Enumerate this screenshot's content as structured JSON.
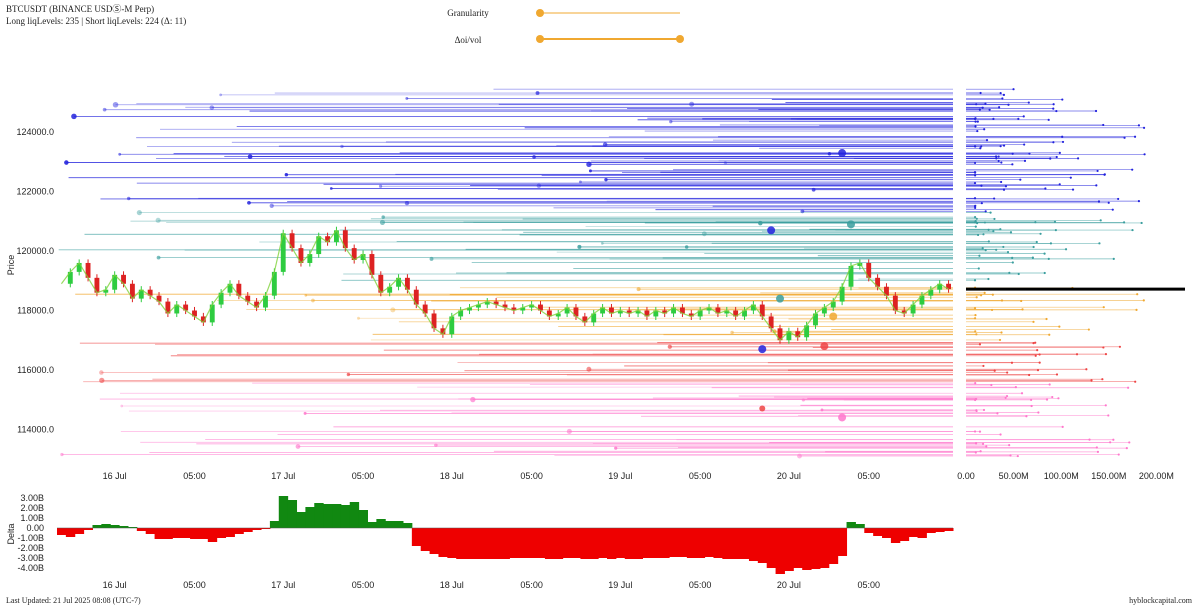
{
  "header": {
    "title": "BTCUSDT (BINANCE USDⓈ-M Perp)",
    "subtitle": "Long liqLevels: 235 | Short liqLevels: 224 (Δ: 11)"
  },
  "controls": {
    "granularity_label": "Granularity",
    "granularity_value": 0.0,
    "oi_vol_label": "Δoi/vol",
    "oi_vol_range": [
      0.0,
      1.0
    ]
  },
  "footer": {
    "last_updated": "Last Updated: 21 Jul 2025 08:08 (UTC-7)",
    "brand": "hyblockcapital.com"
  },
  "colors": {
    "short_liq": "#2222dd",
    "short_liq_mid": "#3a9e9e",
    "long_liq_mid": "#f0a830",
    "long_liq": "#ee4444",
    "long_liq_far": "#ff77cc",
    "candle_up": "#2ecc40",
    "candle_down": "#dd2222",
    "delta_pos": "#118811",
    "delta_neg": "#ee0000",
    "current_price": "#000000"
  },
  "chart_data": [
    {
      "type": "line",
      "name": "main",
      "ylabel": "Price",
      "xlabel": "",
      "ylim": [
        112800,
        126600
      ],
      "yticks": [
        114000,
        116000,
        118000,
        120000,
        122000,
        124000
      ],
      "ytick_labels": [
        "114000.0",
        "116000.0",
        "118000.0",
        "120000.0",
        "122000.0",
        "124000.0"
      ],
      "xticks": [
        0,
        9,
        19,
        28,
        38,
        47,
        57,
        66,
        76,
        85,
        95
      ],
      "xtick_labels": [
        "16 Jul",
        "05:00",
        "17 Jul",
        "05:00",
        "18 Jul",
        "05:00",
        "19 Jul",
        "05:00",
        "20 Jul",
        "05:00",
        ""
      ],
      "xlim": [
        -6.5,
        94.5
      ],
      "current_price": 118720,
      "price_points": [
        [
          -6,
          118900
        ],
        [
          -5,
          119300
        ],
        [
          -4,
          119600
        ],
        [
          -3,
          119100
        ],
        [
          -2,
          118600
        ],
        [
          -1,
          118700
        ],
        [
          0,
          119200
        ],
        [
          1,
          118900
        ],
        [
          2,
          118400
        ],
        [
          3,
          118700
        ],
        [
          4,
          118500
        ],
        [
          5,
          118300
        ],
        [
          6,
          117900
        ],
        [
          7,
          118200
        ],
        [
          8,
          118000
        ],
        [
          9,
          117800
        ],
        [
          10,
          117600
        ],
        [
          11,
          118200
        ],
        [
          12,
          118600
        ],
        [
          13,
          118900
        ],
        [
          14,
          118500
        ],
        [
          15,
          118300
        ],
        [
          16,
          118100
        ],
        [
          17,
          118500
        ],
        [
          18,
          119300
        ],
        [
          19,
          120600
        ],
        [
          20,
          120100
        ],
        [
          21,
          119600
        ],
        [
          22,
          119900
        ],
        [
          23,
          120500
        ],
        [
          24,
          120300
        ],
        [
          25,
          120700
        ],
        [
          26,
          120100
        ],
        [
          27,
          119700
        ],
        [
          28,
          119900
        ],
        [
          29,
          119200
        ],
        [
          30,
          118600
        ],
        [
          31,
          118800
        ],
        [
          32,
          119100
        ],
        [
          33,
          118700
        ],
        [
          34,
          118200
        ],
        [
          35,
          117900
        ],
        [
          36,
          117400
        ],
        [
          37,
          117200
        ],
        [
          38,
          117800
        ],
        [
          39,
          118000
        ],
        [
          40,
          118100
        ],
        [
          41,
          118200
        ],
        [
          42,
          118300
        ],
        [
          43,
          118200
        ],
        [
          44,
          118100
        ],
        [
          45,
          118000
        ],
        [
          46,
          118100
        ],
        [
          47,
          118200
        ],
        [
          48,
          118000
        ],
        [
          49,
          117800
        ],
        [
          50,
          117900
        ],
        [
          51,
          118100
        ],
        [
          52,
          117800
        ],
        [
          53,
          117600
        ],
        [
          54,
          117900
        ],
        [
          55,
          118100
        ],
        [
          56,
          117900
        ],
        [
          57,
          118000
        ],
        [
          58,
          117900
        ],
        [
          59,
          118000
        ],
        [
          60,
          117800
        ],
        [
          61,
          118000
        ],
        [
          62,
          117900
        ],
        [
          63,
          118100
        ],
        [
          64,
          117900
        ],
        [
          65,
          117800
        ],
        [
          66,
          118000
        ],
        [
          67,
          118100
        ],
        [
          68,
          117900
        ],
        [
          69,
          118000
        ],
        [
          70,
          117800
        ],
        [
          71,
          118000
        ],
        [
          72,
          118200
        ],
        [
          73,
          117800
        ],
        [
          74,
          117400
        ],
        [
          75,
          117000
        ],
        [
          76,
          117300
        ],
        [
          77,
          117100
        ],
        [
          78,
          117500
        ],
        [
          79,
          117900
        ],
        [
          80,
          118100
        ],
        [
          81,
          118300
        ],
        [
          82,
          118800
        ],
        [
          83,
          119500
        ],
        [
          84,
          119600
        ],
        [
          85,
          119100
        ],
        [
          86,
          118800
        ],
        [
          87,
          118500
        ],
        [
          88,
          118000
        ],
        [
          89,
          117900
        ],
        [
          90,
          118200
        ],
        [
          91,
          118500
        ],
        [
          92,
          118700
        ],
        [
          93,
          118900
        ],
        [
          94,
          118720
        ]
      ]
    },
    {
      "type": "area",
      "name": "delta",
      "ylabel": "Delta",
      "ylim": [
        -4.8,
        3.6
      ],
      "yticks": [
        -4,
        -3,
        -2,
        -1,
        0,
        1,
        2,
        3
      ],
      "ytick_labels": [
        "-4.00B",
        "-3.00B",
        "-2.00B",
        "-1.00B",
        "0.00",
        "1.00B",
        "2.00B",
        "3.00B"
      ],
      "xticks": [
        0,
        9,
        19,
        28,
        38,
        47,
        57,
        66,
        76,
        85
      ],
      "xtick_labels": [
        "16 Jul",
        "05:00",
        "17 Jul",
        "05:00",
        "18 Jul",
        "05:00",
        "19 Jul",
        "05:00",
        "20 Jul",
        "05:00"
      ],
      "xlim": [
        -6.5,
        94.5
      ],
      "values": [
        [
          -6,
          -0.7
        ],
        [
          -5,
          -0.9
        ],
        [
          -4,
          -0.6
        ],
        [
          -3,
          -0.2
        ],
        [
          -2,
          0.3
        ],
        [
          -1,
          0.4
        ],
        [
          0,
          0.3
        ],
        [
          1,
          0.2
        ],
        [
          2,
          0.1
        ],
        [
          3,
          -0.3
        ],
        [
          4,
          -0.6
        ],
        [
          5,
          -1.1
        ],
        [
          6,
          -1.1
        ],
        [
          7,
          -1.0
        ],
        [
          8,
          -1.0
        ],
        [
          9,
          -1.1
        ],
        [
          10,
          -1.1
        ],
        [
          11,
          -1.4
        ],
        [
          12,
          -1.0
        ],
        [
          13,
          -0.9
        ],
        [
          14,
          -0.6
        ],
        [
          15,
          -0.4
        ],
        [
          16,
          -0.2
        ],
        [
          17,
          -0.1
        ],
        [
          18,
          0.7
        ],
        [
          19,
          3.2
        ],
        [
          20,
          2.8
        ],
        [
          21,
          1.6
        ],
        [
          22,
          2.1
        ],
        [
          23,
          2.5
        ],
        [
          24,
          2.4
        ],
        [
          25,
          2.4
        ],
        [
          26,
          2.3
        ],
        [
          27,
          2.6
        ],
        [
          28,
          1.8
        ],
        [
          29,
          0.6
        ],
        [
          30,
          0.9
        ],
        [
          31,
          0.7
        ],
        [
          32,
          0.7
        ],
        [
          33,
          0.5
        ],
        [
          34,
          -1.8
        ],
        [
          35,
          -2.3
        ],
        [
          36,
          -2.6
        ],
        [
          37,
          -2.9
        ],
        [
          38,
          -3.0
        ],
        [
          39,
          -3.1
        ],
        [
          40,
          -3.1
        ],
        [
          41,
          -3.1
        ],
        [
          42,
          -3.1
        ],
        [
          43,
          -3.1
        ],
        [
          44,
          -3.1
        ],
        [
          45,
          -3.0
        ],
        [
          46,
          -3.0
        ],
        [
          47,
          -3.0
        ],
        [
          48,
          -3.0
        ],
        [
          49,
          -3.1
        ],
        [
          50,
          -3.1
        ],
        [
          51,
          -3.0
        ],
        [
          52,
          -3.0
        ],
        [
          53,
          -3.1
        ],
        [
          54,
          -3.1
        ],
        [
          55,
          -3.0
        ],
        [
          56,
          -3.1
        ],
        [
          57,
          -3.0
        ],
        [
          58,
          -3.1
        ],
        [
          59,
          -3.1
        ],
        [
          60,
          -3.0
        ],
        [
          61,
          -3.0
        ],
        [
          62,
          -3.0
        ],
        [
          63,
          -2.9
        ],
        [
          64,
          -2.9
        ],
        [
          65,
          -3.0
        ],
        [
          66,
          -3.0
        ],
        [
          67,
          -2.9
        ],
        [
          68,
          -3.0
        ],
        [
          69,
          -3.1
        ],
        [
          70,
          -3.1
        ],
        [
          71,
          -3.1
        ],
        [
          72,
          -3.3
        ],
        [
          73,
          -3.5
        ],
        [
          74,
          -4.0
        ],
        [
          75,
          -4.6
        ],
        [
          76,
          -4.3
        ],
        [
          77,
          -4.0
        ],
        [
          78,
          -4.2
        ],
        [
          79,
          -4.1
        ],
        [
          80,
          -4.0
        ],
        [
          81,
          -3.6
        ],
        [
          82,
          -2.8
        ],
        [
          83,
          0.6
        ],
        [
          84,
          0.4
        ],
        [
          85,
          -0.5
        ],
        [
          86,
          -0.8
        ],
        [
          87,
          -1.0
        ],
        [
          88,
          -1.5
        ],
        [
          89,
          -1.3
        ],
        [
          90,
          -0.9
        ],
        [
          91,
          -1.0
        ],
        [
          92,
          -0.5
        ],
        [
          93,
          -0.4
        ],
        [
          94,
          -0.3
        ]
      ]
    },
    {
      "type": "bar",
      "name": "volume_profile",
      "orientation": "horizontal",
      "xlim": [
        0,
        230
      ],
      "xticks": [
        0,
        50,
        100,
        150,
        200
      ],
      "xtick_labels": [
        "0.00",
        "50.00M",
        "100.00M",
        "150.00M",
        "200.00M"
      ]
    }
  ]
}
